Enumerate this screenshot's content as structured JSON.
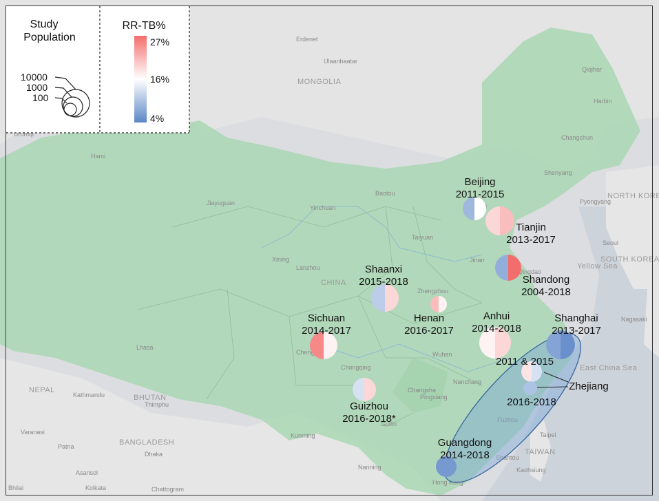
{
  "legend": {
    "population_title_line1": "Study",
    "population_title_line2": "Population",
    "population_sizes": [
      "10000",
      "1000",
      "100"
    ],
    "rr_title": "RR-TB%",
    "rr_ticks": [
      "27%",
      "16%",
      "4%"
    ],
    "color_high": "#f46d6d",
    "color_mid": "#ffffff",
    "color_low": "#5b86c7"
  },
  "basemap": {
    "countries": [
      "MONGOLIA",
      "CHINA",
      "NORTH KOREA",
      "SOUTH KOREA",
      "NEPAL",
      "BHUTAN",
      "BANGLADESH",
      "TAIWAN",
      "Yellow Sea",
      "East China Sea"
    ],
    "cities": [
      "Erdenet",
      "Ulaanbaatar",
      "Qiqihar",
      "Harbin",
      "Changchun",
      "Shenyang",
      "Pyongyang",
      "Seoul",
      "Urumqi",
      "Hami",
      "Jiayuguan",
      "Yinchuan",
      "Baotou",
      "Taiyuan",
      "Xining",
      "Lanzhou",
      "Jinan",
      "Zhengzhou",
      "Lhasa",
      "Chongqing",
      "Wuhan",
      "Changsha",
      "Nanchang",
      "Pingxiang",
      "Fuzhou",
      "Taipei",
      "Kaohsiung",
      "Shantou",
      "Guilin",
      "Kunming",
      "Nanning",
      "Kathmandu",
      "Thimphu",
      "Varanasi",
      "Patna",
      "Asansol",
      "Dhaka",
      "Kolkata",
      "Chattogram",
      "Bhilai",
      "Nagasaki",
      "Hong Kong",
      "Qingdao",
      "Tianjin",
      "Beijing",
      "Chengdu"
    ]
  },
  "regions": [
    {
      "name": "Beijing",
      "period": "2011-2015"
    },
    {
      "name": "Tianjin",
      "period": "2013-2017"
    },
    {
      "name": "Shandong",
      "period": "2004-2018"
    },
    {
      "name": "Shaanxi",
      "period": "2015-2018"
    },
    {
      "name": "Henan",
      "period": "2016-2017"
    },
    {
      "name": "Anhui",
      "period": "2014-2018"
    },
    {
      "name": "Shanghai",
      "period": "2013-2017"
    },
    {
      "name": "Sichuan",
      "period": "2014-2017"
    },
    {
      "name": "Guizhou",
      "period": "2016-2018*"
    },
    {
      "name": "Guangdong",
      "period": "2014-2018"
    },
    {
      "name": "Zhejiang",
      "period_a": "2011 & 2015",
      "period_b": "2016-2018"
    }
  ],
  "bubbles": [
    {
      "region": "Beijing",
      "period": "2011-2015",
      "left_pct": 9,
      "right_pct": 16
    },
    {
      "region": "Tianjin",
      "period": "2013-2017",
      "left_pct": 19,
      "right_pct": 21
    },
    {
      "region": "Shandong",
      "period": "2004-2018",
      "left_pct": 8,
      "right_pct": 27
    },
    {
      "region": "Shaanxi",
      "period": "2015-2018",
      "left_pct": 11,
      "right_pct": 19
    },
    {
      "region": "Henan",
      "period": "2016-2017",
      "left_pct": 21,
      "right_pct": 17
    },
    {
      "region": "Anhui",
      "period": "2014-2018",
      "left_pct": 17,
      "right_pct": 19
    },
    {
      "region": "Shanghai",
      "period": "2013-2017",
      "left_pct": 7,
      "right_pct": 5
    },
    {
      "region": "Sichuan",
      "period": "2014-2017",
      "left_pct": 25,
      "right_pct": 17
    },
    {
      "region": "Guizhou",
      "period": "2016-2018*",
      "left_pct": 13,
      "right_pct": 19
    },
    {
      "region": "Guangdong",
      "period": "2014-2018",
      "left_pct": 6,
      "right_pct": 6
    },
    {
      "region": "Zhejiang",
      "period": "2011 & 2015",
      "left_pct": 18,
      "right_pct": 13
    },
    {
      "region": "Zhejiang",
      "period": "2016-2018",
      "left_pct": 10,
      "right_pct": 10
    }
  ]
}
